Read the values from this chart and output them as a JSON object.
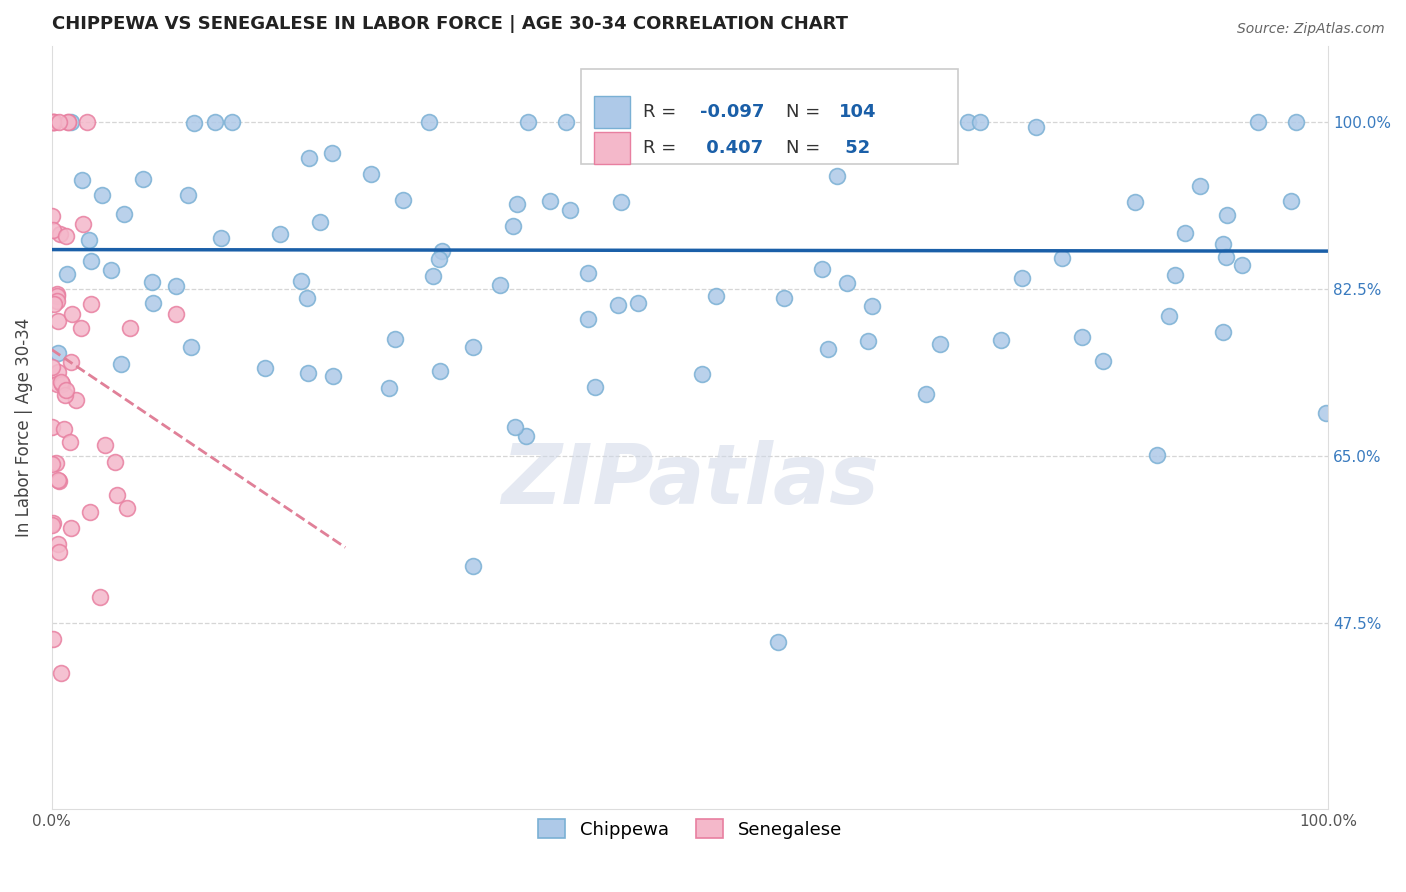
{
  "title": "CHIPPEWA VS SENEGALESE IN LABOR FORCE | AGE 30-34 CORRELATION CHART",
  "source_text": "Source: ZipAtlas.com",
  "ylabel": "In Labor Force | Age 30-34",
  "legend_label_1": "Chippewa",
  "legend_label_2": "Senegalese",
  "R_chippewa": -0.097,
  "N_chippewa": 104,
  "R_senegalese": 0.407,
  "N_senegalese": 52,
  "color_chippewa": "#aec9e8",
  "color_chippewa_edge": "#7ab0d4",
  "color_senegalese": "#f4b8ca",
  "color_senegalese_edge": "#e87fa0",
  "color_line_chippewa": "#1a5fa8",
  "color_line_senegalese": "#e08098",
  "xlim": [
    0.0,
    1.0
  ],
  "ylim": [
    0.28,
    1.08
  ],
  "yticks": [
    0.475,
    0.65,
    0.825,
    1.0
  ],
  "ytick_labels": [
    "47.5%",
    "65.0%",
    "82.5%",
    "100.0%"
  ],
  "xtick_labels": [
    "0.0%",
    "100.0%"
  ],
  "xticks": [
    0.0,
    1.0
  ],
  "watermark": "ZIPatlas",
  "background_color": "#ffffff",
  "grid_color": "#cccccc",
  "title_fontsize": 13,
  "axis_fontsize": 11,
  "stats_fontsize": 13
}
